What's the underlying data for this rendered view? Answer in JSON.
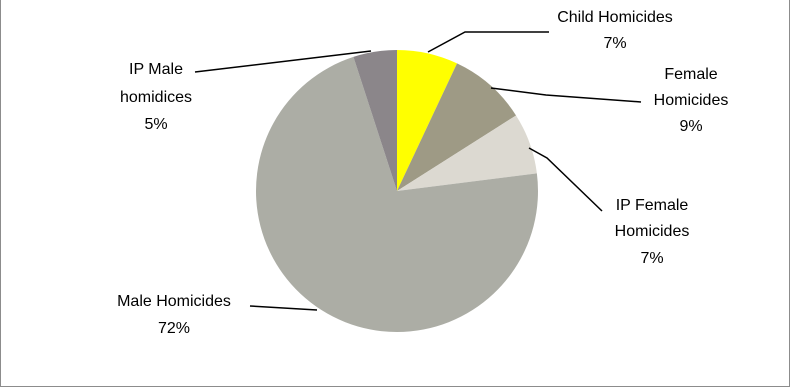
{
  "chart_data": {
    "type": "pie",
    "title": "",
    "slices": [
      {
        "label": "Child Homicides",
        "percent_text": "7%",
        "value": 7,
        "color": "#ffff00"
      },
      {
        "label": "Female Homicides",
        "percent_text": "9%",
        "value": 9,
        "color": "#9e9a85"
      },
      {
        "label": "IP Female Homicides",
        "percent_text": "7%",
        "value": 7,
        "color": "#dcd9d1"
      },
      {
        "label": "Male Homicides",
        "percent_text": "72%",
        "value": 72,
        "color": "#acada5"
      },
      {
        "label": "IP Male homidices",
        "percent_text": "5%",
        "value": 5,
        "color": "#8b868a"
      }
    ],
    "legend": "none",
    "data_labels": "outside with leader lines"
  }
}
